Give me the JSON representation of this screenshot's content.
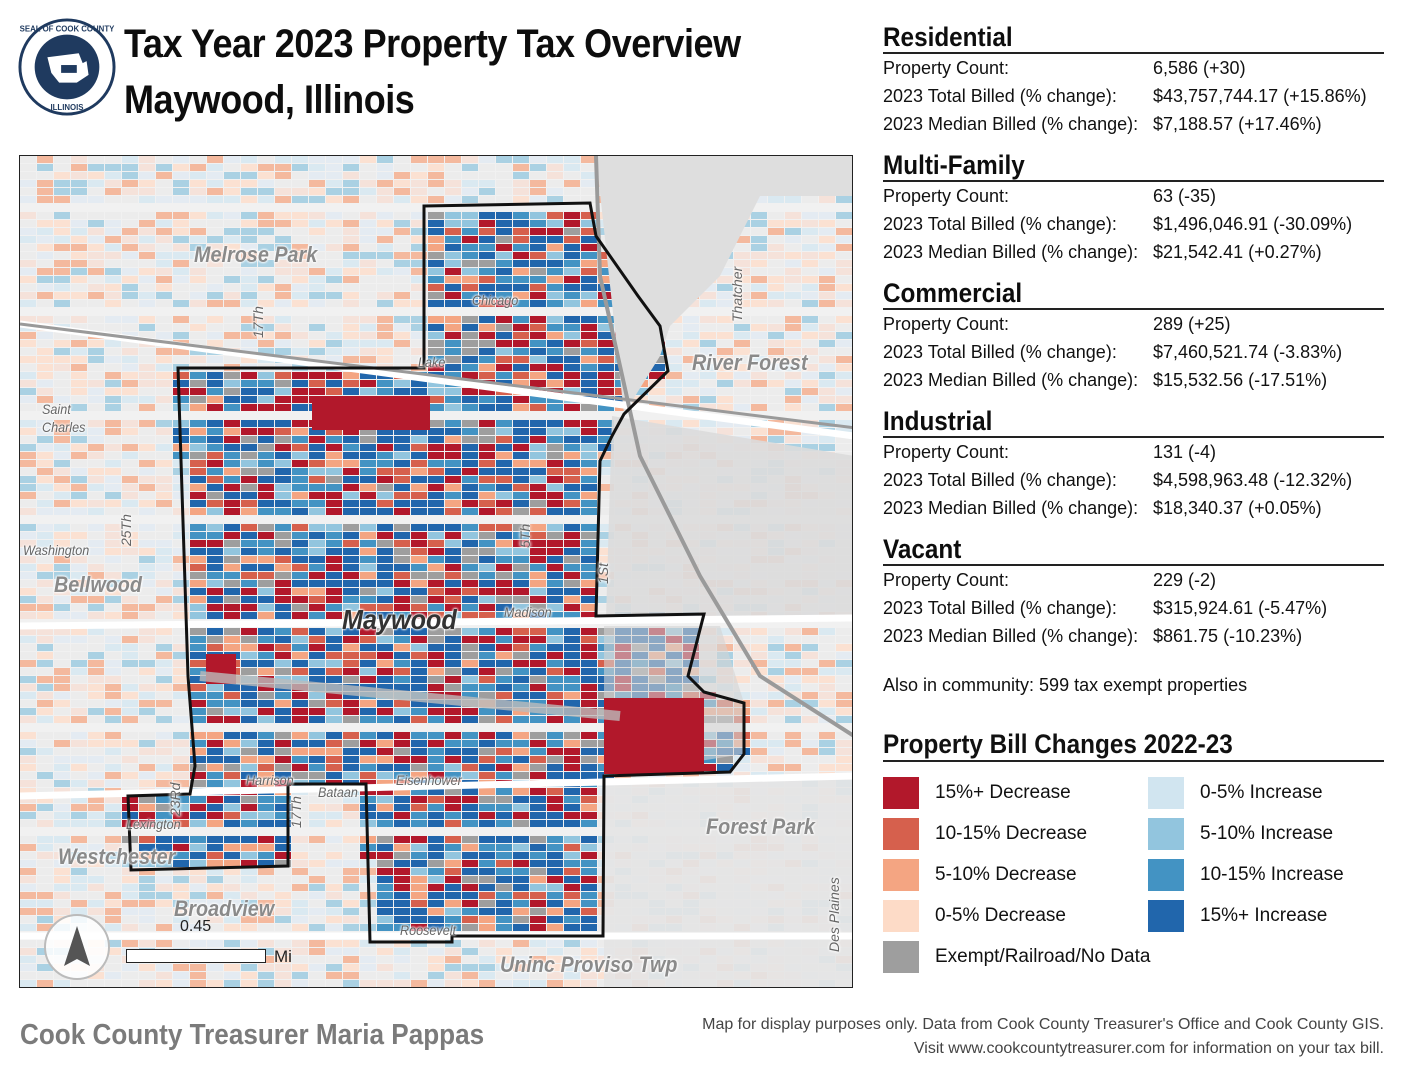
{
  "title": {
    "line1": "Tax Year 2023 Property Tax Overview",
    "line2": "Maywood, Illinois"
  },
  "seal": {
    "top_text": "SEAL OF COOK COUNTY",
    "bottom_text": "ILLINOIS"
  },
  "colors": {
    "dec15": "#b2182b",
    "dec10": "#d6604d",
    "dec5": "#f4a582",
    "dec0": "#fddbc7",
    "inc0": "#d1e5f0",
    "inc5": "#92c5de",
    "inc10": "#4393c3",
    "inc15": "#2166ac",
    "exempt": "#9e9e9e",
    "boundary": "#111111"
  },
  "map": {
    "labels": {
      "maywood": "Maywood",
      "melrose_park": "Melrose Park",
      "river_forest": "River Forest",
      "bellwood": "Bellwood",
      "westchester": "Westchester",
      "broadview": "Broadview",
      "forest_park": "Forest Park",
      "proviso": "Uninc Proviso Twp",
      "saint_charles": "Saint Charles",
      "washington": "Washington",
      "chicago": "Chicago",
      "lake": "Lake",
      "madison": "Madison",
      "harrison": "Harrison",
      "bataan": "Bataan",
      "eisenhower": "Eisenhower",
      "lexington": "Lexington",
      "roosevelt": "Roosevelt",
      "thatcher": "Thatcher",
      "des_plaines": "Des Plaines",
      "s17th": "17Th",
      "s25th": "25Th",
      "s5th": "5Th",
      "s1st": "1St",
      "s23rd": "23Rd",
      "s17th_b": "17Th"
    },
    "scale": {
      "value": "0.45",
      "unit": "Mi"
    },
    "north_arrow_icon": "north-arrow-icon"
  },
  "sections": [
    {
      "heading": "Residential",
      "rows": [
        {
          "label": "Property Count:",
          "value": "6,586 (+30)"
        },
        {
          "label": "2023 Total Billed (% change):",
          "value": "$43,757,744.17 (+15.86%)"
        },
        {
          "label": "2023 Median Billed (% change):",
          "value": "$7,188.57 (+17.46%)"
        }
      ]
    },
    {
      "heading": "Multi-Family",
      "rows": [
        {
          "label": "Property Count:",
          "value": "63 (-35)"
        },
        {
          "label": "2023 Total Billed (% change):",
          "value": "$1,496,046.91 (-30.09%)"
        },
        {
          "label": "2023 Median Billed (% change):",
          "value": "$21,542.41 (+0.27%)"
        }
      ]
    },
    {
      "heading": "Commercial",
      "rows": [
        {
          "label": "Property Count:",
          "value": "289 (+25)"
        },
        {
          "label": "2023 Total Billed (% change):",
          "value": "$7,460,521.74 (-3.83%)"
        },
        {
          "label": "2023 Median Billed (% change):",
          "value": "$15,532.56 (-17.51%)"
        }
      ]
    },
    {
      "heading": "Industrial",
      "rows": [
        {
          "label": "Property Count:",
          "value": "131 (-4)"
        },
        {
          "label": "2023 Total Billed (% change):",
          "value": "$4,598,963.48 (-12.32%)"
        },
        {
          "label": "2023 Median Billed (% change):",
          "value": "$18,340.37 (+0.05%)"
        }
      ]
    },
    {
      "heading": "Vacant",
      "rows": [
        {
          "label": "Property Count:",
          "value": "229 (-2)"
        },
        {
          "label": "2023 Total Billed (% change):",
          "value": "$315,924.61 (-5.47%)"
        },
        {
          "label": "2023 Median Billed (% change):",
          "value": "$861.75 (-10.23%)"
        }
      ]
    }
  ],
  "also_in_community": "Also in community: 599 tax exempt properties",
  "legend": {
    "title": "Property Bill Changes 2022-23",
    "items": [
      {
        "label": "15%+ Decrease",
        "color": "#b2182b"
      },
      {
        "label": "10-15% Decrease",
        "color": "#d6604d"
      },
      {
        "label": "5-10% Decrease",
        "color": "#f4a582"
      },
      {
        "label": "0-5% Decrease",
        "color": "#fddbc7"
      },
      {
        "label": "Exempt/Railroad/No Data",
        "color": "#9e9e9e"
      },
      {
        "label": "0-5% Increase",
        "color": "#d1e5f0"
      },
      {
        "label": "5-10% Increase",
        "color": "#92c5de"
      },
      {
        "label": "10-15% Increase",
        "color": "#4393c3"
      },
      {
        "label": "15%+ Increase",
        "color": "#2166ac"
      }
    ]
  },
  "footer": {
    "left": "Cook County Treasurer Maria Pappas",
    "right_line1": "Map for display purposes only. Data from Cook County Treasurer's Office and Cook County GIS.",
    "right_line2": "Visit www.cookcountytreasurer.com for information on your tax bill."
  }
}
